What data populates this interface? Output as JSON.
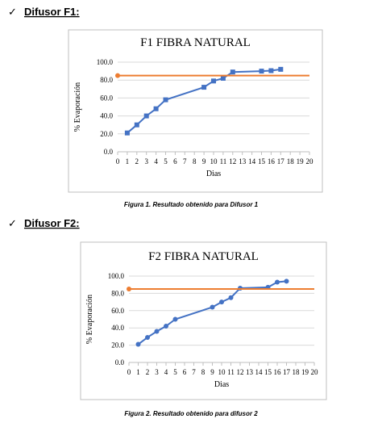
{
  "sections": [
    {
      "marker": "✓",
      "heading": "Difusor F1:",
      "caption": "Figura 1. Resultado obtenido para Difusor 1"
    },
    {
      "marker": "✓",
      "heading": "Difusor F2:",
      "caption": "Figura 2. Resultado obtenido para difusor 2"
    }
  ],
  "chart_data": [
    {
      "type": "line",
      "title": "F1 FIBRA NATURAL",
      "xlabel": "Dias",
      "ylabel": "% Evaporación",
      "xlim": [
        0,
        20
      ],
      "ylim": [
        0,
        100
      ],
      "xticks": [
        0,
        1,
        2,
        3,
        4,
        5,
        6,
        7,
        8,
        9,
        10,
        11,
        12,
        13,
        14,
        15,
        16,
        17,
        18,
        19,
        20
      ],
      "yticks": [
        {
          "value": 0,
          "label": "0.0"
        },
        {
          "value": 20,
          "label": "20.0"
        },
        {
          "value": 40,
          "label": "40.0"
        },
        {
          "value": 60,
          "label": "60.0"
        },
        {
          "value": 80,
          "label": "80.0"
        },
        {
          "value": 100,
          "label": "100.0"
        }
      ],
      "grid": true,
      "series": [
        {
          "color": "#4472c4",
          "marker": "square",
          "x": [
            1,
            2,
            3,
            4,
            5,
            9,
            10,
            11,
            12,
            15,
            16,
            17
          ],
          "values": [
            21,
            30,
            40,
            48,
            58,
            72,
            79,
            82,
            89,
            90,
            90.5,
            92
          ]
        },
        {
          "color": "#ed7d31",
          "marker": "start",
          "x": [
            0,
            20
          ],
          "values": [
            85,
            85
          ]
        }
      ]
    },
    {
      "type": "line",
      "title": "F2 FIBRA NATURAL",
      "xlabel": "Dias",
      "ylabel": "% Evaporación",
      "xlim": [
        0,
        20
      ],
      "ylim": [
        0,
        100
      ],
      "xticks": [
        0,
        1,
        2,
        3,
        4,
        5,
        6,
        7,
        8,
        9,
        10,
        11,
        12,
        13,
        14,
        15,
        16,
        17,
        18,
        19,
        20
      ],
      "yticks": [
        {
          "value": 0,
          "label": "0.0"
        },
        {
          "value": 20,
          "label": "20.0"
        },
        {
          "value": 40,
          "label": "40.0"
        },
        {
          "value": 60,
          "label": "60.0"
        },
        {
          "value": 80,
          "label": "80.0"
        },
        {
          "value": 100,
          "label": "100.0"
        }
      ],
      "grid": true,
      "series": [
        {
          "color": "#4472c4",
          "marker": "circle",
          "x": [
            1,
            2,
            3,
            4,
            5,
            9,
            10,
            11,
            12,
            15,
            16,
            17
          ],
          "values": [
            21,
            29,
            36,
            42,
            50,
            64,
            70,
            75,
            86,
            87,
            93,
            94
          ]
        },
        {
          "color": "#ed7d31",
          "marker": "start",
          "x": [
            0,
            20
          ],
          "values": [
            85,
            85
          ]
        }
      ]
    }
  ]
}
